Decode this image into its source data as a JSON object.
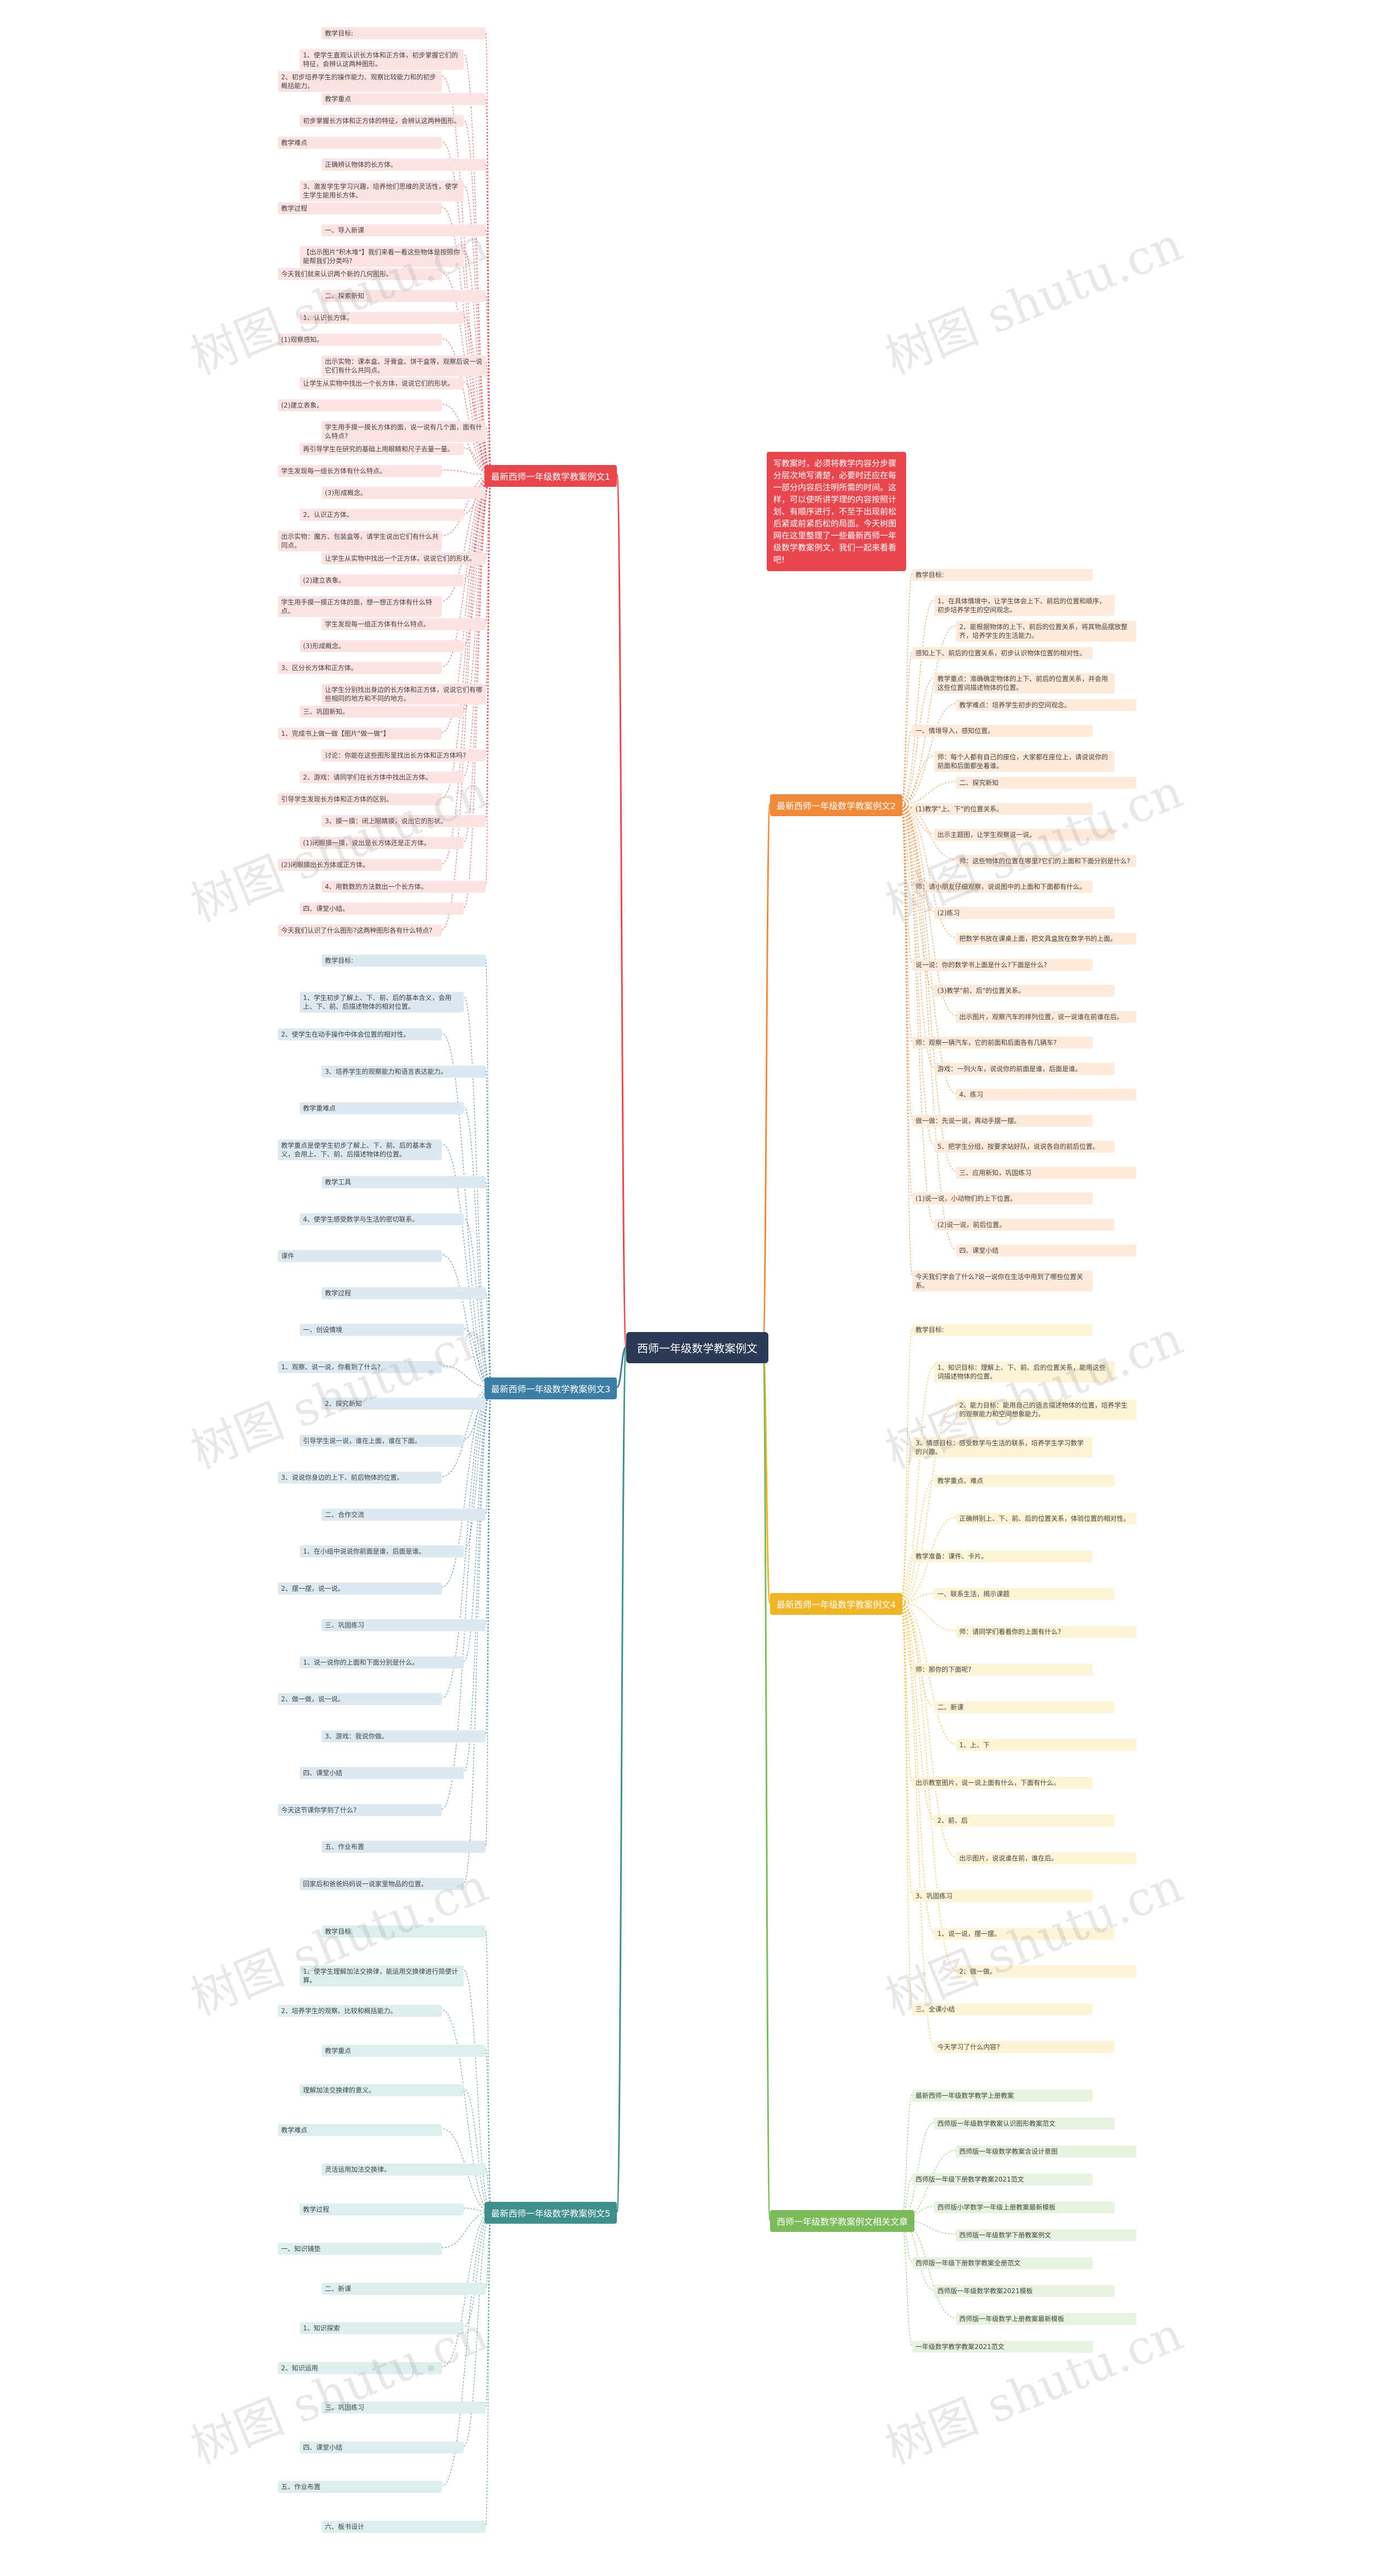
{
  "root": {
    "title": "西师一年级数学教案例文"
  },
  "intro": "写教案时，必须将教学内容分步骤分层次地写清楚，必要时还应在每一部分内容后注明所需的时间。这样，可以使听讲学理的内容按照计划、有顺序进行，不至于出现前松后紧或前紧后松的局面。今天树图网在这里整理了一些最新西师一年级数学教案例文，我们一起来看看吧!",
  "colors": {
    "root": "#2b3a55",
    "b1": "#e8474f",
    "b1_light": "#fbe3e4",
    "b2": "#f08a3a",
    "b2_light": "#fdeadb",
    "b3": "#3d7ea6",
    "b3_light": "#dde9f1",
    "b4": "#f0b429",
    "b4_light": "#fdf3d6",
    "b5": "#3f8f8a",
    "b5_light": "#dceeed",
    "b6": "#7dbb5a",
    "b6_light": "#e7f3df"
  },
  "watermark": "树图 shutu.cn",
  "branches": [
    {
      "label": "最新西师一年级数学教案例文1",
      "items": [
        "教学目标:",
        "1、使学生直观认识长方体和正方体，初步掌握它们的特征，会辨认这两种图形。",
        "2、初步培养学生的操作能力、观察比较能力和的初步概括能力。",
        "教学重点",
        "初步掌握长方体和正方体的特征，会辨认这两种图形。",
        "教学难点",
        "正确辨认物体的长方体。",
        "3、激发学生学习兴趣，培养他们思维的灵活性，使学生学生能用长方体。",
        "教学过程",
        "一、导入新课",
        "【出示图片\"积木堆\"】我们来看一看这些物体是按照你能帮我们分类吗?",
        "今天我们就来认识两个新的几何图形。",
        "二、探索新知",
        "1、认识长方体。",
        "(1)观察感知。",
        "出示实物：课本盒、牙膏盒、饼干盒等，观察后说一说它们有什么共同点。",
        "让学生从实物中找出一个长方体，说说它们的形状。",
        "(2)建立表象。",
        "学生用手摸一摸长方体的面，说一说有几个面，面有什么特点?",
        "再引导学生在研究的基础上用眼睛和尺子去量一量。",
        "学生发现每一组长方体有什么特点。",
        "(3)形成概念。",
        "2、认识正方体。",
        "出示实物：魔方、包装盒等，请学生说出它们有什么共同点。",
        "让学生从实物中找出一个正方体，说说它们的形状。",
        "(2)建立表象。",
        "学生用手摸一摸正方体的面，想一想正方体有什么特点。",
        "学生发现每一组正方体有什么特点。",
        "(3)形成概念。",
        "3、区分长方体和正方体。",
        "让学生分别找出身边的长方体和正方体，说说它们有哪些相同的地方和不同的地方。",
        "三、巩固新知。",
        "1、完成书上做一做【图片\"做一做\"】",
        "讨论：你能在这些图形里找出长方体和正方体吗?",
        "2、游戏：请同学们在长方体中找出正方体。",
        "引导学生发现长方体和正方体的区别。",
        "3、摸一摸：闭上眼睛摸，说出它的形状。",
        "(1)闭眼摸一摸，说出是长方体还是正方体。",
        "(2)闭眼摸出长方体或正方体。",
        "4、用数数的方法数出一个长方体。",
        "四、课堂小结。",
        "今天我们认识了什么图形?这两种图形各有什么特点?"
      ]
    },
    {
      "label": "最新西师一年级数学教案例文2",
      "items": [
        "教学目标:",
        "1、在具体情境中，让学生体会上下、前后的位置和顺序，初步培养学生的空间观念。",
        "2、能根据物体的上下、前后的位置关系，将其物品摆放整齐，培养学生的生活能力。",
        "感知上下、前后的位置关系，初步认识物体位置的相对性。",
        "教学重点：准确确定物体的上下、前后的位置关系，并会用这些位置词描述物体的位置。",
        "教学难点：培养学生初步的空间观念。",
        "一、情境导入，感知位置。",
        "师：每个人都有自己的座位，大家都在座位上，请说说你的前面和后面都坐着谁。",
        "二、探究新知",
        "(1)教学\"上、下\"的位置关系。",
        "出示主题图，让学生观察说一说。",
        "师：这些物体的位置在哪里?它们的上面和下面分别是什么?",
        "师：请小朋友仔细观察，说说图中的上面和下面都有什么。",
        "(2)练习",
        "把数学书放在课桌上面，把文具盒放在数学书的上面。",
        "说一说：你的数学书上面是什么?下面是什么?",
        "(3)教学\"前、后\"的位置关系。",
        "出示图片，观察汽车的排列位置，说一说谁在前谁在后。",
        "师：观察一辆汽车，它的前面和后面各有几辆车?",
        "游戏：一列火车，说说你的前面是谁，后面是谁。",
        "4、练习",
        "做一做：先说一说，再动手摆一摆。",
        "5、把学生分组，按要求站好队，说说各自的前后位置。",
        "三、应用新知，巩固练习",
        "(1)说一说，小动物们的上下位置。",
        "(2)说一说，前后位置。",
        "四、课堂小结",
        "今天我们学会了什么?说一说你在生活中用到了哪些位置关系。"
      ]
    },
    {
      "label": "最新西师一年级数学教案例文3",
      "items": [
        "教学目标:",
        "1、学生初步了解上、下、前、后的基本含义，会用上、下、前、后描述物体的相对位置。",
        "2、使学生在动手操作中体会位置的相对性。",
        "3、培养学生的观察能力和语言表达能力。",
        "教学重难点",
        "教学重点是使学生初步了解上、下、前、后的基本含义，会用上、下、前、后描述物体的位置。",
        "教学工具",
        "4、使学生感受数学与生活的密切联系。",
        "课件",
        "教学过程",
        "一、创设情境",
        "1、观察、说一说，你看到了什么?",
        "2、探究新知",
        "引导学生说一说，谁在上面，谁在下面。",
        "3、说说你身边的上下、前后物体的位置。",
        "二、合作交流",
        "1、在小组中说说你前面是谁，后面是谁。",
        "2、摆一摆，说一说。",
        "三、巩固练习",
        "1、说一说你的上面和下面分别是什么。",
        "2、做一做，说一说。",
        "3、游戏：我说你做。",
        "四、课堂小结",
        "今天这节课你学到了什么?",
        "五、作业布置",
        "回家后和爸爸妈妈说一说家里物品的位置。"
      ]
    },
    {
      "label": "最新西师一年级数学教案例文4",
      "items": [
        "教学目标:",
        "1、知识目标：理解上、下、前、后的位置关系，能用这些词描述物体的位置。",
        "2、能力目标：能用自己的语言描述物体的位置，培养学生的观察能力和空间想象能力。",
        "3、情感目标：感受数学与生活的联系，培养学生学习数学的兴趣。",
        "教学重点、难点",
        "正确辨别上、下、前、后的位置关系，体验位置的相对性。",
        "教学准备：课件、卡片。",
        "一、联系生活，揭示课题",
        "师：请同学们看看你的上面有什么?",
        "师：那你的下面呢?",
        "二、新课",
        "1、上、下",
        "出示教室图片，说一说上面有什么，下面有什么。",
        "2、前、后",
        "出示图片，说说谁在前，谁在后。",
        "3、巩固练习",
        "1、说一说，摆一摆。",
        "2、做一做。",
        "三、全课小结",
        "今天学习了什么内容?"
      ]
    },
    {
      "label": "最新西师一年级数学教案例文5",
      "items": [
        "教学目标",
        "1、使学生理解加法交换律，能运用交换律进行简便计算。",
        "2、培养学生的观察、比较和概括能力。",
        "教学重点",
        "理解加法交换律的意义。",
        "教学难点",
        "灵活运用加法交换律。",
        "教学过程",
        "一、知识铺垫",
        "二、新课",
        "1、知识探索",
        "2、知识运用",
        "三、巩固练习",
        "四、课堂小结",
        "五、作业布置",
        "六、板书设计"
      ]
    },
    {
      "label": "西师一年级数学教案例文相关文章",
      "items": [
        "最新西师一年级数学教学上册教案",
        "西师版一年级数学教案认识图形教案范文",
        "西师版一年级数学教案含设计意图",
        "西师版一年级下册数学教案2021范文",
        "西师版小学数学一年级上册教案最新模板",
        "西师版一年级数学下册教案例文",
        "西师版一年级下册数学教案全册范文",
        "西师版一年级数学教案2021模板",
        "西师版一年级数学上册教案最新模板",
        "一年级数学教学教案2021范文"
      ]
    }
  ]
}
